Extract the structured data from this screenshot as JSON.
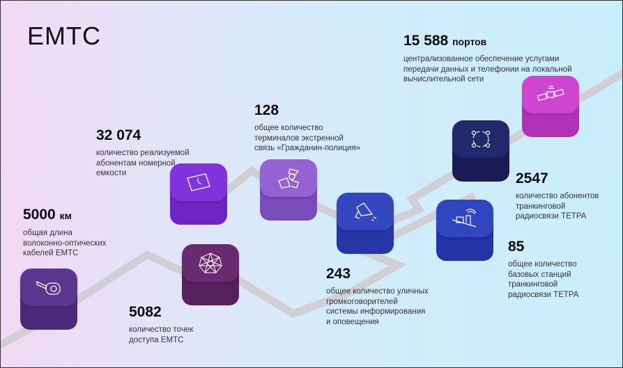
{
  "title": "ЕМТС",
  "stats": [
    {
      "value": "5000",
      "unit": "км",
      "desc": "общая длина\nволоконно-оптических\nкабелей ЕМТС",
      "icon": "tape-measure-icon",
      "color": "#4b2a7c",
      "top_color": "#5c368f"
    },
    {
      "value": "5082",
      "unit": "",
      "desc": "количество точек\nдоступа ЕМТС",
      "icon": "network-icon",
      "color": "#55205c",
      "top_color": "#6a2a70"
    },
    {
      "value": "32 074",
      "unit": "",
      "desc": "количество реализуемой\nабонентам номерной\nемкости",
      "icon": "phone-book-icon",
      "color": "#6d26c4",
      "top_color": "#8134dc"
    },
    {
      "value": "128",
      "unit": "",
      "desc": "общее количество\nтерминалов экстренной\nсвязь «Гражданин-полиция»",
      "icon": "police-officer-icon",
      "color": "#7a4cba",
      "top_color": "#9462d2"
    },
    {
      "value": "243",
      "unit": "",
      "desc": "общее количество уличных\nгромкоговорителей\nсистемы информирования\nи оповещения",
      "icon": "megaphone-icon",
      "color": "#2636a6",
      "top_color": "#3447bf"
    },
    {
      "value": "85",
      "unit": "",
      "desc": "общее количество\nбазовых станций\nтранкинговой\nрадиосвязи ТЕТРА",
      "icon": "base-station-icon",
      "color": "#2234a8",
      "top_color": "#3045c0"
    },
    {
      "value": "2547",
      "unit": "",
      "desc": "количество абонентов\nтранкинговой\nрадиосвязи ТЕТРА",
      "icon": "people-circle-icon",
      "color": "#1a1c55",
      "top_color": "#23276c"
    },
    {
      "value": "15 588",
      "unit": "портов",
      "desc": "централизованное обеспечение услугами\nпередачи данных и телефонии на локальной\nвычислительной сети",
      "icon": "satellite-icon",
      "color": "#b232b4",
      "top_color": "#cf45cf"
    }
  ]
}
